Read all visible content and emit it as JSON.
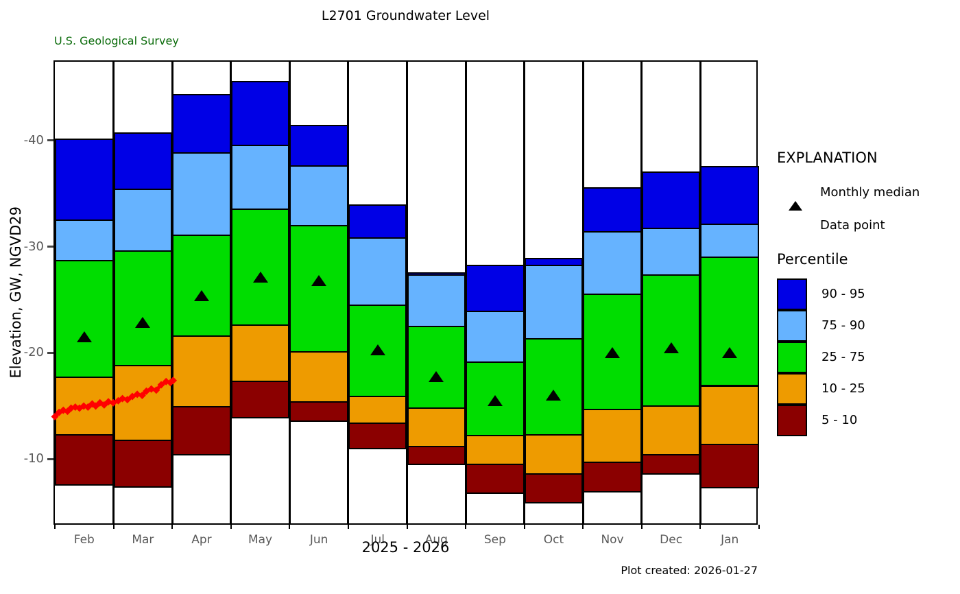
{
  "header": {
    "title": "L2701 Groundwater Level",
    "agency": "U.S. Geological Survey"
  },
  "footer": {
    "created": "Plot created: 2026-01-27"
  },
  "colors": {
    "p90_95": "#0000e6",
    "p75_90": "#66b3ff",
    "p25_75": "#00dd00",
    "p10_25": "#ee9b00",
    "p5_10": "#8b0000",
    "data_point": "#ff0000",
    "agency_green": "#0a6b0a",
    "axis_gray": "#595959"
  },
  "legend": {
    "title": "EXPLANATION",
    "monthly_median_label": "Monthly median",
    "data_point_label": "Data point",
    "percentile_title": "Percentile",
    "bands": [
      {
        "label": "90 - 95",
        "color": "#0000e6"
      },
      {
        "label": "75 - 90",
        "color": "#66b3ff"
      },
      {
        "label": "25 - 75",
        "color": "#00dd00"
      },
      {
        "label": "10 - 25",
        "color": "#ee9b00"
      },
      {
        "label": "5 - 10",
        "color": "#8b0000"
      }
    ]
  },
  "chart_data": {
    "type": "bar",
    "subtype": "monthly-percentile-bands",
    "title": "L2701 Groundwater Level",
    "xlabel": "2025 - 2026",
    "ylabel": "Elevation, GW, NGVD29",
    "y_ticks": [
      -40,
      -30,
      -20,
      -10
    ],
    "y_domain": {
      "top": -47.4,
      "bottom": -3.7
    },
    "grid": false,
    "legend_position": "right",
    "months": [
      "Feb",
      "Mar",
      "Apr",
      "May",
      "Jun",
      "Jul",
      "Aug",
      "Sep",
      "Oct",
      "Nov",
      "Dec",
      "Jan"
    ],
    "band_order": [
      "90 - 95",
      "75 - 90",
      "25 - 75",
      "10 - 25",
      "5 - 10"
    ],
    "series": [
      {
        "month": "Feb",
        "p95": -40.1,
        "p90": -32.5,
        "p75": -28.7,
        "p25": -17.7,
        "p10": -12.3,
        "p5": -7.6,
        "median": -21.5
      },
      {
        "month": "Mar",
        "p95": -40.7,
        "p90": -35.4,
        "p75": -29.6,
        "p25": -18.8,
        "p10": -11.8,
        "p5": -7.4,
        "median": -22.9
      },
      {
        "month": "Apr",
        "p95": -44.3,
        "p90": -38.8,
        "p75": -31.1,
        "p25": -21.6,
        "p10": -14.9,
        "p5": -10.4,
        "median": -25.4
      },
      {
        "month": "May",
        "p95": -45.5,
        "p90": -39.5,
        "p75": -33.5,
        "p25": -22.6,
        "p10": -17.3,
        "p5": -13.9,
        "median": -27.1
      },
      {
        "month": "Jun",
        "p95": -41.4,
        "p90": -37.6,
        "p75": -32.0,
        "p25": -20.1,
        "p10": -15.4,
        "p5": -13.6,
        "median": -26.8
      },
      {
        "month": "Jul",
        "p95": -33.9,
        "p90": -30.8,
        "p75": -24.5,
        "p25": -15.9,
        "p10": -13.4,
        "p5": -11.0,
        "median": -20.3
      },
      {
        "month": "Aug",
        "p95": -27.5,
        "p90": -27.3,
        "p75": -22.5,
        "p25": -14.8,
        "p10": -11.2,
        "p5": -9.5,
        "median": -17.8
      },
      {
        "month": "Sep",
        "p95": -28.2,
        "p90": -23.9,
        "p75": -19.1,
        "p25": -12.2,
        "p10": -9.5,
        "p5": -6.8,
        "median": -15.5
      },
      {
        "month": "Oct",
        "p95": -28.9,
        "p90": -28.2,
        "p75": -21.3,
        "p25": -12.3,
        "p10": -8.6,
        "p5": -5.9,
        "median": -16.0
      },
      {
        "month": "Nov",
        "p95": -35.5,
        "p90": -31.4,
        "p75": -25.5,
        "p25": -14.7,
        "p10": -9.7,
        "p5": -6.9,
        "median": -20.0
      },
      {
        "month": "Dec",
        "p95": -37.0,
        "p90": -31.7,
        "p75": -27.3,
        "p25": -15.0,
        "p10": -10.4,
        "p5": -8.6,
        "median": -20.5
      },
      {
        "month": "Jan",
        "p95": -37.5,
        "p90": -32.1,
        "p75": -29.0,
        "p25": -16.9,
        "p10": -11.4,
        "p5": -7.3,
        "median": -20.0
      }
    ],
    "data_line": {
      "label": "Data point",
      "color": "#ff0000",
      "points": [
        [
          0.0,
          -14.0
        ],
        [
          0.006,
          -14.4
        ],
        [
          0.012,
          -14.6
        ],
        [
          0.018,
          -14.5
        ],
        [
          0.023,
          -14.8
        ],
        [
          0.029,
          -14.9
        ],
        [
          0.035,
          -14.8
        ],
        [
          0.041,
          -15.0
        ],
        [
          0.047,
          -14.9
        ],
        [
          0.053,
          -15.2
        ],
        [
          0.058,
          -15.0
        ],
        [
          0.064,
          -15.3
        ],
        [
          0.07,
          -15.1
        ],
        [
          0.076,
          -15.4
        ],
        [
          0.083,
          -15.3
        ],
        [
          0.09,
          -15.5
        ],
        [
          0.096,
          -15.7
        ],
        [
          0.103,
          -15.6
        ],
        [
          0.11,
          -15.9
        ],
        [
          0.117,
          -16.1
        ],
        [
          0.124,
          -16.0
        ],
        [
          0.13,
          -16.4
        ],
        [
          0.137,
          -16.6
        ],
        [
          0.144,
          -16.5
        ],
        [
          0.151,
          -17.0
        ],
        [
          0.158,
          -17.3
        ],
        [
          0.164,
          -17.2
        ],
        [
          0.168,
          -17.4
        ]
      ]
    }
  }
}
